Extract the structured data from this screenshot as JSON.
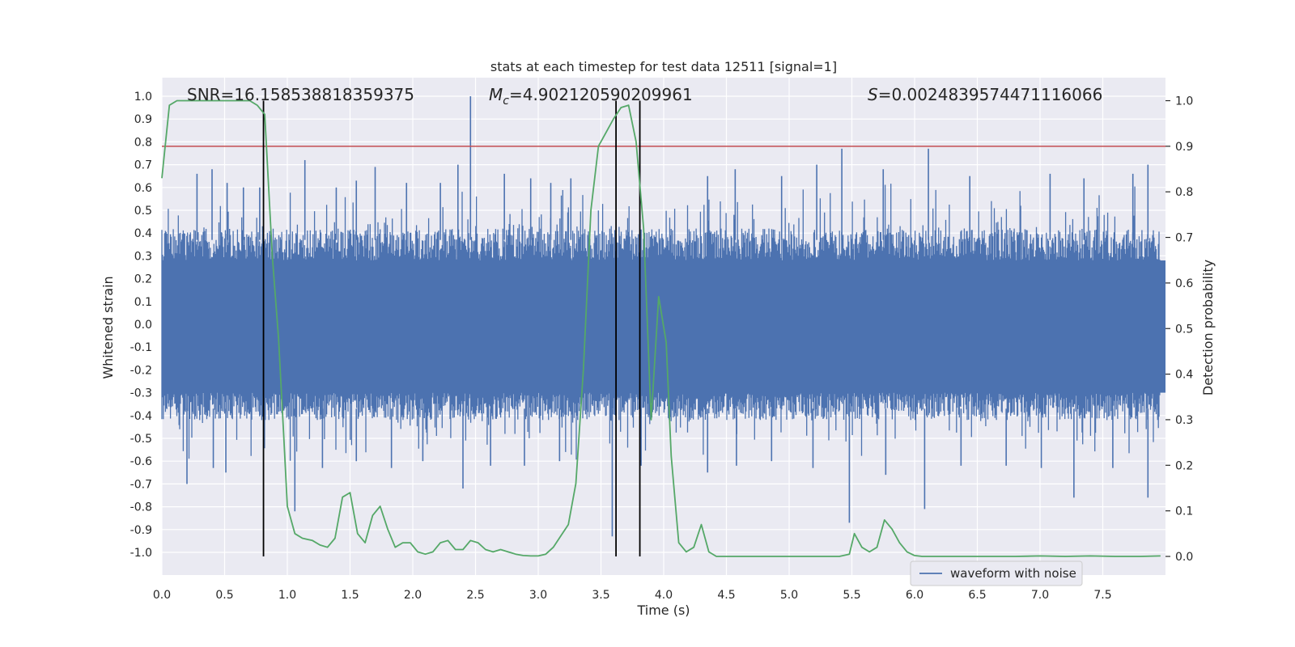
{
  "chart_data": {
    "type": "line",
    "title": "stats at each timestep for test data 12511 [signal=1]",
    "xlabel": "Time (s)",
    "ylabel_left": "Whitened strain",
    "ylabel_right": "Detection probability",
    "xlim": [
      0,
      8
    ],
    "ylim_left": [
      -1.05,
      1.05
    ],
    "ylim_right": [
      -0.05,
      1.03
    ],
    "x_ticks": [
      "0.0",
      "0.5",
      "1.0",
      "1.5",
      "2.0",
      "2.5",
      "3.0",
      "3.5",
      "4.0",
      "4.5",
      "5.0",
      "5.5",
      "6.0",
      "6.5",
      "7.0",
      "7.5"
    ],
    "x_tick_values": [
      0,
      0.5,
      1,
      1.5,
      2,
      2.5,
      3,
      3.5,
      4,
      4.5,
      5,
      5.5,
      6,
      6.5,
      7,
      7.5
    ],
    "y_ticks_left": [
      "1.0",
      "0.9",
      "0.8",
      "0.7",
      "0.6",
      "0.5",
      "0.4",
      "0.3",
      "0.2",
      "0.1",
      "0.0",
      "-0.1",
      "-0.2",
      "-0.3",
      "-0.4",
      "-0.5",
      "-0.6",
      "-0.7",
      "-0.8",
      "-0.9",
      "-1.0"
    ],
    "y_tick_values_left": [
      1.0,
      0.9,
      0.8,
      0.7,
      0.6,
      0.5,
      0.4,
      0.3,
      0.2,
      0.1,
      0.0,
      -0.1,
      -0.2,
      -0.3,
      -0.4,
      -0.5,
      -0.6,
      -0.7,
      -0.8,
      -0.9,
      -1.0
    ],
    "y_ticks_right": [
      "1.0",
      "0.9",
      "0.8",
      "0.7",
      "0.6",
      "0.5",
      "0.4",
      "0.3",
      "0.2",
      "0.1",
      "0.0"
    ],
    "y_tick_values_right": [
      1.0,
      0.9,
      0.8,
      0.7,
      0.6,
      0.5,
      0.4,
      0.3,
      0.2,
      0.1,
      0.0
    ],
    "annotations": {
      "snr": "SNR=16.158538818359375",
      "mc_symbol": "M",
      "mc_sub": "c",
      "mc_value": "=4.902120590209961",
      "s_symbol": "S",
      "s_value": "=0.0024839574471116066"
    },
    "legend": {
      "label": "waveform with noise",
      "position": "lower-right"
    },
    "waveform": {
      "name": "waveform with noise",
      "color": "#4c72b0",
      "note": "dense noisy whitened strain sampled over 0–8 s, typical amplitude ~±0.4 with spikes to ~±0.7",
      "envelope_upper": 0.42,
      "envelope_lower": -0.42,
      "core_upper": 0.28,
      "core_lower": -0.3,
      "spikes": [
        {
          "t": 0.28,
          "v": 0.66
        },
        {
          "t": 0.4,
          "v": 0.68
        },
        {
          "t": 0.52,
          "v": 0.62
        },
        {
          "t": 0.65,
          "v": 0.6
        },
        {
          "t": 0.78,
          "v": 0.6
        },
        {
          "t": 1.14,
          "v": 0.72
        },
        {
          "t": 1.39,
          "v": 0.6
        },
        {
          "t": 1.55,
          "v": 0.63
        },
        {
          "t": 1.7,
          "v": 0.69
        },
        {
          "t": 1.95,
          "v": 0.62
        },
        {
          "t": 2.22,
          "v": 0.62
        },
        {
          "t": 2.36,
          "v": 0.7
        },
        {
          "t": 2.46,
          "v": 1.0
        },
        {
          "t": 2.73,
          "v": 0.66
        },
        {
          "t": 2.94,
          "v": 0.64
        },
        {
          "t": 3.1,
          "v": 0.62
        },
        {
          "t": 3.26,
          "v": 0.64
        },
        {
          "t": 4.35,
          "v": 0.65
        },
        {
          "t": 4.57,
          "v": 0.68
        },
        {
          "t": 4.94,
          "v": 0.65
        },
        {
          "t": 5.22,
          "v": 0.7
        },
        {
          "t": 5.42,
          "v": 0.77
        },
        {
          "t": 5.75,
          "v": 0.68
        },
        {
          "t": 6.11,
          "v": 0.77
        },
        {
          "t": 6.44,
          "v": 0.65
        },
        {
          "t": 7.08,
          "v": 0.66
        },
        {
          "t": 7.35,
          "v": 0.64
        },
        {
          "t": 7.74,
          "v": 0.66
        },
        {
          "t": 7.86,
          "v": 0.7
        },
        {
          "t": 0.2,
          "v": -0.7
        },
        {
          "t": 0.41,
          "v": -0.63
        },
        {
          "t": 0.51,
          "v": -0.65
        },
        {
          "t": 1.06,
          "v": -0.82
        },
        {
          "t": 1.28,
          "v": -0.63
        },
        {
          "t": 1.55,
          "v": -0.6
        },
        {
          "t": 1.83,
          "v": -0.63
        },
        {
          "t": 2.08,
          "v": -0.6
        },
        {
          "t": 2.4,
          "v": -0.72
        },
        {
          "t": 2.62,
          "v": -0.62
        },
        {
          "t": 2.89,
          "v": -0.62
        },
        {
          "t": 3.17,
          "v": -0.6
        },
        {
          "t": 3.59,
          "v": -0.93
        },
        {
          "t": 3.82,
          "v": -0.62
        },
        {
          "t": 4.35,
          "v": -0.65
        },
        {
          "t": 4.58,
          "v": -0.62
        },
        {
          "t": 4.86,
          "v": -0.6
        },
        {
          "t": 5.19,
          "v": -0.63
        },
        {
          "t": 5.48,
          "v": -0.87
        },
        {
          "t": 5.77,
          "v": -0.66
        },
        {
          "t": 6.08,
          "v": -0.81
        },
        {
          "t": 6.37,
          "v": -0.62
        },
        {
          "t": 6.73,
          "v": -0.62
        },
        {
          "t": 7.01,
          "v": -0.63
        },
        {
          "t": 7.27,
          "v": -0.76
        },
        {
          "t": 7.58,
          "v": -0.63
        },
        {
          "t": 7.86,
          "v": -0.76
        }
      ]
    },
    "detection_probability": {
      "color": "#55a868",
      "axis": "right",
      "x": [
        0.0,
        0.06,
        0.12,
        0.2,
        0.3,
        0.4,
        0.5,
        0.6,
        0.7,
        0.76,
        0.82,
        0.88,
        0.93,
        0.97,
        1.0,
        1.06,
        1.12,
        1.2,
        1.26,
        1.32,
        1.38,
        1.44,
        1.5,
        1.56,
        1.62,
        1.68,
        1.74,
        1.8,
        1.86,
        1.92,
        1.98,
        2.04,
        2.1,
        2.16,
        2.22,
        2.28,
        2.34,
        2.4,
        2.46,
        2.52,
        2.58,
        2.64,
        2.7,
        2.76,
        2.82,
        2.88,
        2.94,
        3.0,
        3.06,
        3.12,
        3.18,
        3.24,
        3.3,
        3.36,
        3.42,
        3.48,
        3.54,
        3.6,
        3.66,
        3.72,
        3.78,
        3.84,
        3.9,
        3.96,
        4.02,
        4.06,
        4.12,
        4.18,
        4.24,
        4.3,
        4.36,
        4.42,
        4.5,
        4.6,
        4.8,
        5.0,
        5.2,
        5.4,
        5.48,
        5.52,
        5.58,
        5.64,
        5.7,
        5.76,
        5.82,
        5.88,
        5.94,
        6.0,
        6.06,
        6.12,
        6.2,
        6.4,
        6.6,
        6.8,
        7.0,
        7.2,
        7.4,
        7.6,
        7.8,
        7.96
      ],
      "y": [
        0.83,
        0.99,
        1.0,
        1.0,
        1.0,
        1.0,
        1.0,
        1.0,
        1.0,
        0.99,
        0.97,
        0.66,
        0.48,
        0.27,
        0.11,
        0.05,
        0.04,
        0.035,
        0.025,
        0.02,
        0.04,
        0.13,
        0.14,
        0.05,
        0.03,
        0.09,
        0.11,
        0.06,
        0.02,
        0.03,
        0.03,
        0.01,
        0.005,
        0.01,
        0.03,
        0.035,
        0.015,
        0.015,
        0.035,
        0.03,
        0.015,
        0.01,
        0.015,
        0.01,
        0.005,
        0.002,
        0.001,
        0.001,
        0.005,
        0.02,
        0.045,
        0.07,
        0.16,
        0.41,
        0.76,
        0.9,
        0.93,
        0.96,
        0.985,
        0.99,
        0.91,
        0.72,
        0.3,
        0.57,
        0.47,
        0.22,
        0.03,
        0.01,
        0.02,
        0.07,
        0.01,
        0.0,
        0.0,
        0.0,
        0.0,
        0.0,
        0.0,
        0.0,
        0.005,
        0.05,
        0.02,
        0.01,
        0.02,
        0.08,
        0.06,
        0.03,
        0.01,
        0.002,
        0.0,
        0.0,
        0.0,
        0.0,
        0.0,
        0.0,
        0.001,
        0.0,
        0.001,
        0.0,
        0.0,
        0.001
      ]
    },
    "threshold_line": {
      "value": 0.9,
      "axis": "right",
      "color": "#c44e52"
    },
    "vertical_lines": [
      0.81,
      3.62,
      3.81
    ],
    "grid": true
  }
}
